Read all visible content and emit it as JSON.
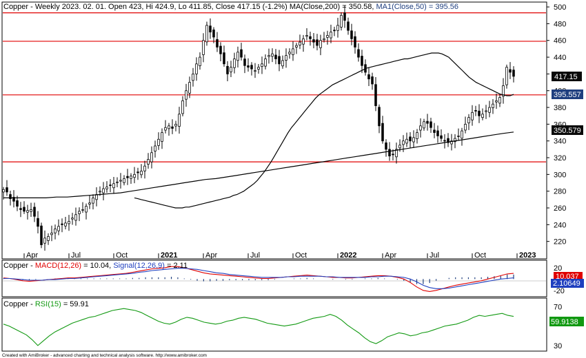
{
  "header": {
    "price_title": "Copper - Weekly 2023. 02. 01. Open 423, Hi 424.9, Lo 411.85, Close 417.15 (-1.2%)",
    "ma200_label": "MA(Close,200) = 350.58,",
    "ma50_label": "MA1(Close,50) = 395.56",
    "macd_prefix": "Copper -",
    "macd_label": "MACD(12,26)",
    "macd_value": "= 10.04,",
    "signal_label": "Signal(12,26,9)",
    "signal_value": "= 2.11",
    "rsi_prefix": "Copper -",
    "rsi_label": "RSI(15)",
    "rsi_value": "= 59.91",
    "footer": "Created with AmiBroker - advanced charting and technical analysis software. http://www.amibroker.com"
  },
  "badges": {
    "price": "417.15",
    "ma50": "395.557",
    "ma200": "350.579",
    "macd": "10.037",
    "signal": "2.10649",
    "rsi": "59.9138"
  },
  "colors": {
    "up": "#ffffff",
    "down": "#000000",
    "hline": "#e00000",
    "ma": "#000000",
    "macd": "#e00000",
    "signal": "#1f3fbf",
    "rsi": "#119911",
    "badge_dark": "#0a0a0a",
    "badge_blue": "#1f3f7f",
    "badge_red": "#e00000",
    "badge_green": "#119911"
  },
  "chart_data": [
    {
      "type": "candlestick",
      "title": "Copper - Weekly",
      "yticks": [
        220,
        240,
        260,
        280,
        300,
        320,
        340,
        360,
        380,
        400,
        420,
        440,
        460,
        480,
        500
      ],
      "ylim": [
        200,
        505
      ],
      "xticks": [
        {
          "label": "Apr",
          "w": 12,
          "bold": false
        },
        {
          "label": "Jul",
          "w": 25,
          "bold": false
        },
        {
          "label": "Oct",
          "w": 38,
          "bold": false
        },
        {
          "label": "2021",
          "w": 51,
          "bold": true
        },
        {
          "label": "Apr",
          "w": 64,
          "bold": false
        },
        {
          "label": "Jul",
          "w": 77,
          "bold": false
        },
        {
          "label": "Oct",
          "w": 90,
          "bold": false
        },
        {
          "label": "2022",
          "w": 103,
          "bold": true
        },
        {
          "label": "Apr",
          "w": 116,
          "bold": false
        },
        {
          "label": "Jul",
          "w": 129,
          "bold": false
        },
        {
          "label": "Oct",
          "w": 142,
          "bold": false
        },
        {
          "label": "2023",
          "w": 155,
          "bold": true
        }
      ],
      "hlines": [
        493,
        459,
        395,
        315
      ],
      "close": [
        282,
        279,
        271,
        268,
        262,
        258,
        256,
        257,
        258,
        250,
        238,
        216,
        224,
        226,
        230,
        235,
        238,
        240,
        242,
        244,
        248,
        252,
        256,
        258,
        262,
        266,
        272,
        276,
        280,
        283,
        285,
        287,
        289,
        291,
        293,
        295,
        296,
        298,
        300,
        302,
        304,
        310,
        318,
        326,
        334,
        342,
        350,
        356,
        358,
        355,
        360,
        372,
        388,
        400,
        410,
        420,
        432,
        440,
        460,
        478,
        470,
        464,
        452,
        444,
        432,
        420,
        428,
        438,
        446,
        440,
        430,
        428,
        426,
        424,
        428,
        432,
        438,
        442,
        444,
        438,
        432,
        436,
        442,
        446,
        450,
        454,
        458,
        462,
        466,
        462,
        458,
        454,
        460,
        462,
        466,
        470,
        472,
        478,
        490,
        484,
        472,
        462,
        452,
        440,
        430,
        422,
        414,
        408,
        382,
        358,
        340,
        330,
        322,
        324,
        330,
        335,
        340,
        342,
        340,
        344,
        350,
        358,
        363,
        361,
        356,
        350,
        346,
        343,
        340,
        338,
        340,
        343,
        346,
        352,
        360,
        368,
        374,
        376,
        370,
        372,
        376,
        380,
        384,
        388,
        392,
        406,
        428,
        422,
        417.15
      ],
      "ma50": [
        272,
        271,
        270,
        269,
        268,
        267,
        266,
        265,
        264,
        263,
        262,
        261,
        260,
        260,
        260,
        261,
        261,
        262,
        263,
        264,
        265,
        266,
        267,
        268,
        269,
        270,
        271,
        272,
        273,
        275,
        276,
        278,
        280,
        283,
        286,
        289,
        293,
        298,
        303,
        309,
        315,
        322,
        329,
        336,
        343,
        350,
        356,
        361,
        366,
        371,
        376,
        381,
        386,
        391,
        395,
        398,
        401,
        404,
        407,
        409,
        411,
        413,
        415,
        417,
        419,
        421,
        423,
        425,
        427,
        428,
        429,
        430,
        431,
        432,
        433,
        434,
        435,
        436,
        437,
        438,
        438,
        439,
        440,
        441,
        442,
        443,
        444,
        445,
        445,
        445,
        444,
        442,
        440,
        436,
        432,
        428,
        424,
        420,
        416,
        413,
        410,
        408,
        406,
        404,
        402,
        400,
        398,
        396,
        395,
        394,
        394,
        395.56
      ],
      "ma50_start": 38,
      "ma200": [
        272,
        272,
        272,
        272,
        272,
        273,
        273,
        274,
        275,
        276,
        277,
        278,
        280,
        282,
        284,
        286,
        288,
        290,
        292,
        294,
        295,
        297,
        299,
        301,
        303,
        305,
        307,
        309,
        311,
        313,
        315,
        317,
        319,
        321,
        323,
        325,
        327,
        329,
        331,
        333,
        335,
        337,
        339,
        341,
        343,
        345,
        347,
        349,
        350.58
      ],
      "ma200_start": 0,
      "ma200_step": 3.08
    },
    {
      "type": "line",
      "title": "MACD(12,26)",
      "ylim": [
        -30,
        32
      ],
      "yticks": [
        -20,
        20
      ],
      "series": [
        {
          "name": "MACD(12,26)",
          "values": [
            2,
            1,
            -1,
            -3,
            -4,
            -3,
            -2,
            -1,
            0,
            1,
            2,
            2,
            3,
            4,
            5,
            6,
            7,
            8,
            9,
            10,
            12,
            14,
            16,
            18,
            19,
            20,
            22,
            22,
            20,
            17,
            14,
            11,
            9,
            8,
            7,
            6,
            5,
            4,
            3,
            2,
            1,
            1,
            2,
            3,
            4,
            5,
            6,
            7,
            6,
            5,
            4,
            3,
            3,
            2,
            2,
            3,
            4,
            5,
            6,
            6,
            5,
            3,
            0,
            -6,
            -14,
            -20,
            -22,
            -20,
            -17,
            -14,
            -11,
            -9,
            -7,
            -5,
            -3,
            0,
            3,
            6,
            9,
            10.04
          ]
        },
        {
          "name": "Signal(12,26,9)",
          "values": [
            1,
            1,
            0,
            -1,
            -2,
            -2,
            -2,
            -1,
            -1,
            0,
            1,
            1,
            2,
            3,
            4,
            5,
            6,
            7,
            8,
            9,
            10,
            12,
            13,
            15,
            16,
            17,
            18,
            19,
            19,
            18,
            17,
            15,
            13,
            11,
            10,
            8,
            7,
            6,
            5,
            4,
            3,
            3,
            3,
            3,
            4,
            4,
            5,
            5,
            5,
            5,
            4,
            4,
            3,
            3,
            3,
            3,
            3,
            4,
            4,
            5,
            5,
            4,
            3,
            0,
            -5,
            -11,
            -15,
            -17,
            -17,
            -16,
            -14,
            -12,
            -10,
            -8,
            -6,
            -4,
            -2,
            0,
            1,
            2.11
          ]
        }
      ]
    },
    {
      "type": "line",
      "title": "RSI(15)",
      "ylim": [
        25,
        78
      ],
      "yticks": [
        30,
        70
      ],
      "series": [
        {
          "name": "RSI(15)",
          "values": [
            52,
            50,
            47,
            44,
            41,
            36,
            30,
            35,
            40,
            44,
            47,
            50,
            53,
            55,
            57,
            59,
            60,
            62,
            64,
            66,
            67,
            68,
            67,
            66,
            64,
            61,
            58,
            55,
            53,
            52,
            54,
            57,
            59,
            58,
            56,
            54,
            53,
            52,
            53,
            55,
            56,
            58,
            59,
            58,
            57,
            55,
            53,
            52,
            51,
            50,
            51,
            52,
            54,
            56,
            58,
            59,
            60,
            62,
            60,
            56,
            51,
            47,
            43,
            38,
            34,
            32,
            35,
            39,
            41,
            43,
            42,
            40,
            41,
            43,
            44,
            46,
            48,
            50,
            51,
            52,
            54,
            56,
            59,
            61,
            60,
            61,
            62,
            63,
            61,
            59.91
          ]
        }
      ]
    }
  ]
}
